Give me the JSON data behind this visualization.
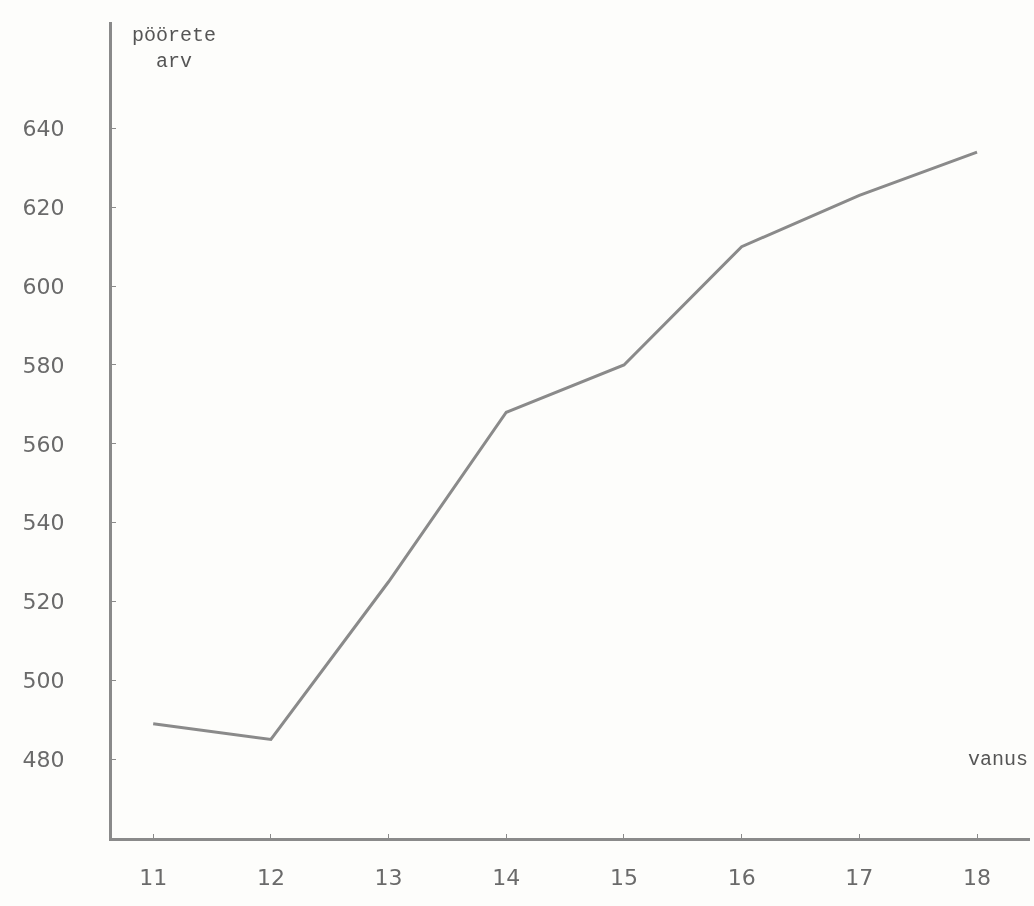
{
  "chart_data": {
    "type": "line",
    "xlabel": "vanus",
    "ylabel": "pöörete arv",
    "x": [
      11,
      12,
      13,
      14,
      15,
      16,
      17,
      18
    ],
    "series": [
      {
        "color": "#8a8a8a",
        "values": [
          489,
          485,
          525,
          568,
          580,
          610,
          623,
          634
        ]
      }
    ],
    "xlim": [
      10.65,
      18.45
    ],
    "xticks": [
      11,
      12,
      13,
      14,
      15,
      16,
      17,
      18
    ],
    "ylim": [
      460,
      667
    ],
    "yticks": [
      480,
      500,
      520,
      540,
      560,
      580,
      600,
      620,
      640
    ],
    "marker": "none",
    "line_style": "solid"
  }
}
